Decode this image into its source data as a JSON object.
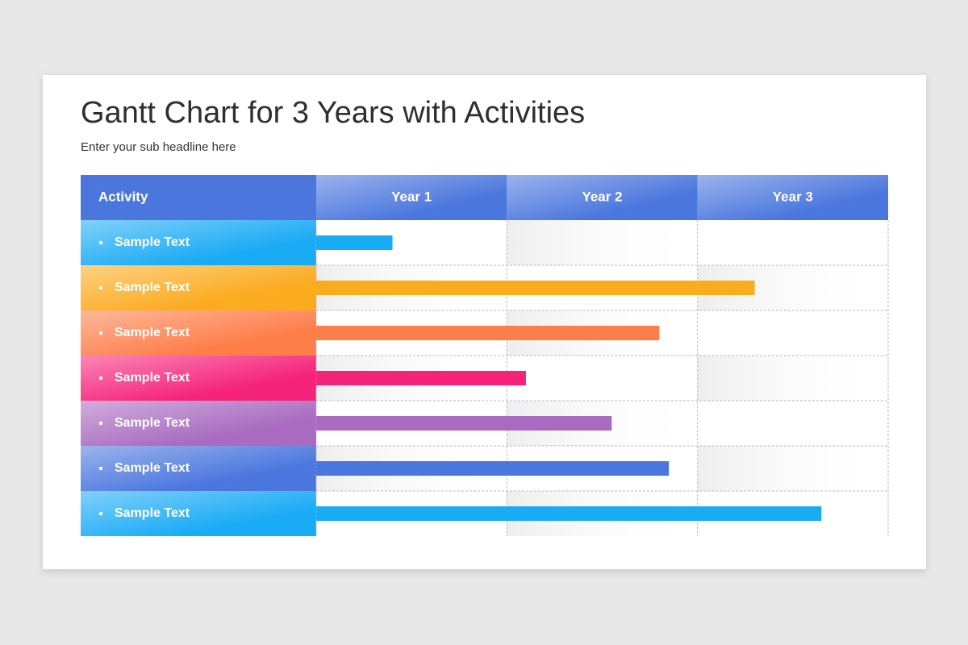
{
  "chart_data": {
    "type": "gantt",
    "title": "Gantt Chart for 3 Years with Activities",
    "subtitle": "Enter your sub headline here",
    "category_header": "Activity",
    "periods": [
      "Year 1",
      "Year 2",
      "Year 3"
    ],
    "categories": [
      "Sample Text",
      "Sample Text",
      "Sample Text",
      "Sample Text",
      "Sample Text",
      "Sample Text",
      "Sample Text"
    ],
    "values": [
      0.4,
      2.3,
      1.8,
      1.1,
      1.55,
      1.85,
      2.65
    ],
    "colors": [
      "#1aabf5",
      "#fbab1e",
      "#fe7e4a",
      "#f5237a",
      "#a96bc0",
      "#4a76de",
      "#1aabf5"
    ],
    "header_color": "#4a76de",
    "xlim": [
      0,
      3
    ],
    "xticks": [
      0,
      1,
      2,
      3
    ],
    "grid": true
  }
}
